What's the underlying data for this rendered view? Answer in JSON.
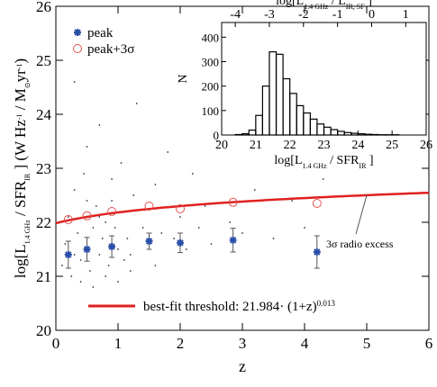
{
  "chart_data": {
    "type": "scatter",
    "xlabel": "z",
    "ylabel_parts": [
      "log[L",
      "1.4 GHz",
      " / SFR",
      "IR",
      " ]   (W Hz",
      "-1",
      " / M",
      "⊙",
      "yr",
      "-1",
      ")"
    ],
    "xlim": [
      0,
      6
    ],
    "xticks": [
      0,
      1,
      2,
      3,
      4,
      5,
      6
    ],
    "ylim": [
      20,
      26
    ],
    "yticks": [
      20,
      21,
      22,
      23,
      24,
      25,
      26
    ],
    "x": [
      0.2,
      0.5,
      0.9,
      1.5,
      2.0,
      2.85,
      4.2
    ],
    "series": [
      {
        "name": "peak",
        "color": "#2a4fa8",
        "values": [
          21.4,
          21.5,
          21.55,
          21.65,
          21.62,
          21.67,
          21.45
        ],
        "errors": [
          0.25,
          0.22,
          0.2,
          0.15,
          0.18,
          0.22,
          0.3
        ]
      },
      {
        "name": "peak+3σ",
        "color": "#e05050",
        "values": [
          22.05,
          22.12,
          22.2,
          22.3,
          22.25,
          22.37,
          22.35
        ]
      }
    ],
    "cloud": {
      "color": "#333333",
      "x": [
        0.1,
        0.15,
        0.2,
        0.25,
        0.3,
        0.3,
        0.35,
        0.4,
        0.45,
        0.5,
        0.5,
        0.55,
        0.6,
        0.65,
        0.7,
        0.7,
        0.75,
        0.8,
        0.85,
        0.9,
        0.9,
        0.95,
        1.0,
        1.05,
        1.1,
        1.15,
        1.2,
        1.25,
        1.3,
        1.4,
        1.5,
        1.6,
        1.7,
        1.8,
        1.9,
        2.0,
        2.1,
        2.2,
        2.3,
        2.5,
        2.6,
        2.8,
        3.0,
        3.2,
        3.5,
        3.8,
        4.0,
        4.3,
        0.4,
        0.6,
        0.8,
        1.0,
        1.2,
        0.3,
        0.5,
        0.7,
        1.1,
        1.6,
        2.4,
        0.9
      ],
      "y": [
        21.2,
        21.6,
        22.1,
        21.0,
        21.4,
        22.6,
        21.8,
        21.3,
        22.9,
        21.5,
        23.4,
        21.1,
        21.9,
        22.3,
        21.4,
        23.8,
        21.7,
        22.0,
        21.2,
        21.6,
        22.8,
        21.9,
        21.5,
        23.1,
        22.2,
        21.7,
        21.4,
        22.5,
        24.2,
        21.9,
        21.6,
        22.7,
        21.8,
        23.3,
        21.7,
        22.1,
        21.5,
        22.9,
        21.9,
        21.6,
        23.5,
        22.0,
        21.8,
        22.6,
        21.7,
        22.4,
        21.9,
        22.8,
        20.9,
        20.8,
        21.0,
        20.9,
        21.1,
        24.6,
        22.4,
        22.1,
        21.3,
        21.2,
        22.3,
        22.4
      ]
    },
    "fit": {
      "a": 21.984,
      "b": 0.013,
      "color": "#e02020",
      "label_pre": "best-fit threshold: ",
      "label_mid": "· (1+z)"
    },
    "annotation": "3σ radio excess",
    "inset": {
      "type": "histogram",
      "ylabel": "N",
      "xlabel_parts": [
        "log[L",
        "1.4 GHz",
        " / SFR",
        "IR",
        " ]"
      ],
      "x2label_parts": [
        "log[L",
        "1.4 GHz",
        " / L",
        "IR, SF",
        " ]"
      ],
      "xlim": [
        20,
        26
      ],
      "xticks": [
        20,
        21,
        22,
        23,
        24,
        25,
        26
      ],
      "x2lim": [
        -4.4,
        1.6
      ],
      "x2ticks": [
        -4,
        -3,
        -2,
        -1,
        0,
        1
      ],
      "ylim": [
        0,
        460
      ],
      "yticks": [
        0,
        100,
        200,
        300,
        400
      ],
      "bins": [
        20.4,
        20.6,
        20.8,
        21.0,
        21.2,
        21.4,
        21.6,
        21.8,
        22.0,
        22.2,
        22.4,
        22.6,
        22.8,
        23.0,
        23.2,
        23.4,
        23.6,
        23.8,
        24.0,
        24.2,
        24.4,
        24.6,
        24.8,
        25.0,
        25.2,
        25.4
      ],
      "counts": [
        2,
        5,
        20,
        80,
        200,
        340,
        330,
        230,
        170,
        120,
        90,
        65,
        45,
        32,
        22,
        15,
        10,
        7,
        5,
        3,
        2,
        1,
        1,
        1,
        0
      ]
    }
  }
}
